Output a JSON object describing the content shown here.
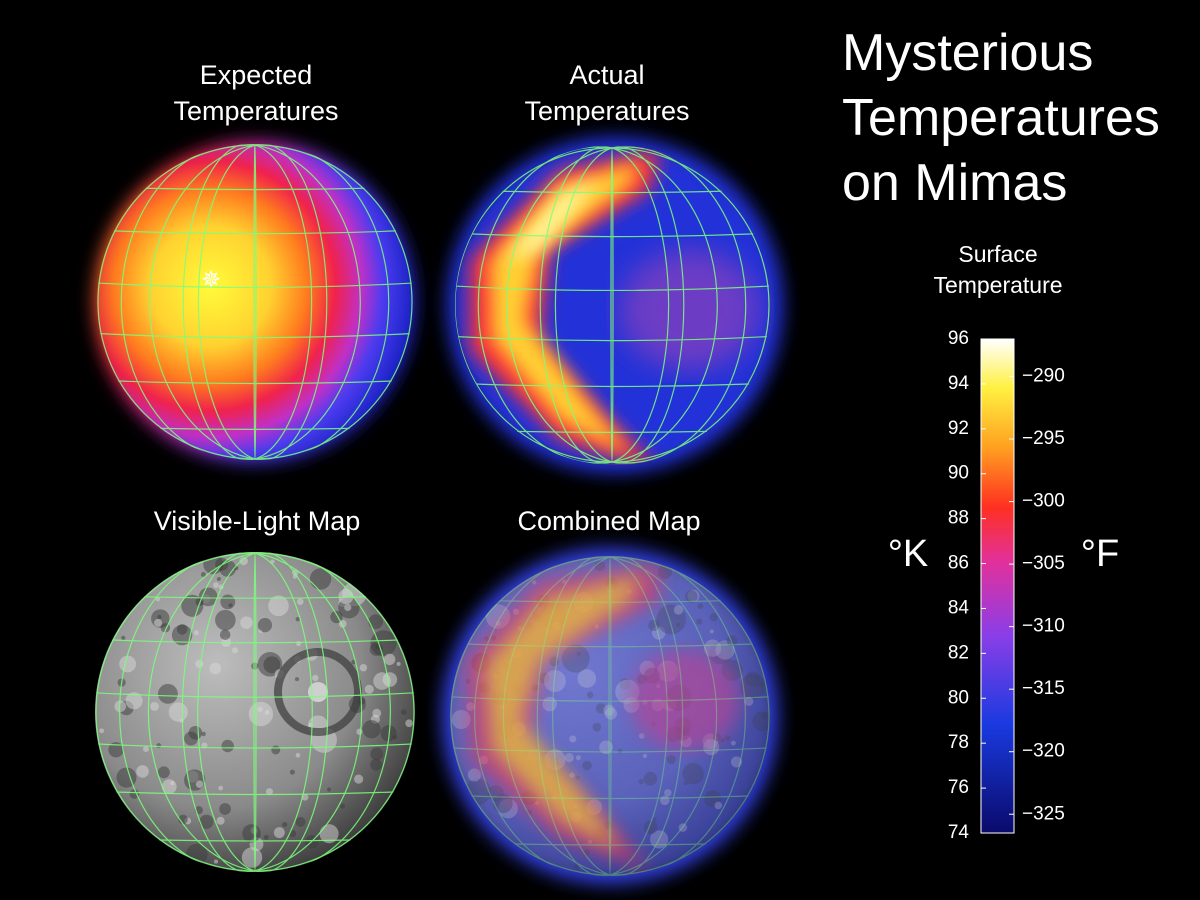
{
  "title": [
    "Mysterious",
    "Temperatures",
    "on Mimas"
  ],
  "panels": [
    {
      "label": [
        "Expected",
        "Temperatures"
      ]
    },
    {
      "label": [
        "Actual",
        "Temperatures"
      ]
    },
    {
      "label": [
        "Visible-Light Map"
      ]
    },
    {
      "label": [
        "Combined Map"
      ]
    }
  ],
  "colorbar": {
    "label": [
      "Surface",
      "Temperature"
    ],
    "left_unit": "°K",
    "right_unit": "°F",
    "klim": [
      74,
      96
    ],
    "kticks": [
      74,
      76,
      78,
      80,
      82,
      84,
      86,
      88,
      90,
      92,
      94,
      96
    ],
    "flim": [
      -326.5,
      -287
    ],
    "fticks": [
      {
        "value": -325,
        "label": "−325"
      },
      {
        "value": -320,
        "label": "−320"
      },
      {
        "value": -315,
        "label": "−315"
      },
      {
        "value": -310,
        "label": "−310"
      },
      {
        "value": -305,
        "label": "−305"
      },
      {
        "value": -300,
        "label": "−300"
      },
      {
        "value": -295,
        "label": "−295"
      },
      {
        "value": -290,
        "label": "−290"
      }
    ]
  }
}
